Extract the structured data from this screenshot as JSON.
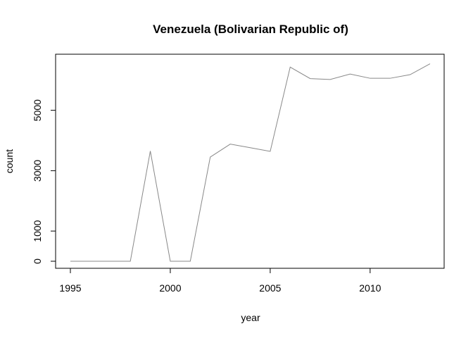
{
  "chart_data": {
    "type": "line",
    "title": "Venezuela (Bolivarian Republic of)",
    "xlabel": "year",
    "ylabel": "count",
    "xlim": [
      1995,
      2013
    ],
    "ylim": [
      0,
      6500
    ],
    "x_ticks": [
      1995,
      2000,
      2005,
      2010
    ],
    "y_ticks": [
      0,
      1000,
      3000,
      5000
    ],
    "grid": false,
    "line_color": "#888888",
    "series": [
      {
        "x": [
          1995,
          1996,
          1997,
          1998,
          1999,
          2000,
          2001,
          2002,
          2003,
          2004,
          2005,
          2006,
          2007,
          2008,
          2009,
          2010,
          2011,
          2012,
          2013
        ],
        "values": [
          0,
          0,
          0,
          0,
          3650,
          0,
          0,
          3450,
          3880,
          3760,
          3640,
          6430,
          6050,
          6020,
          6200,
          6060,
          6060,
          6180,
          6540
        ]
      }
    ]
  }
}
